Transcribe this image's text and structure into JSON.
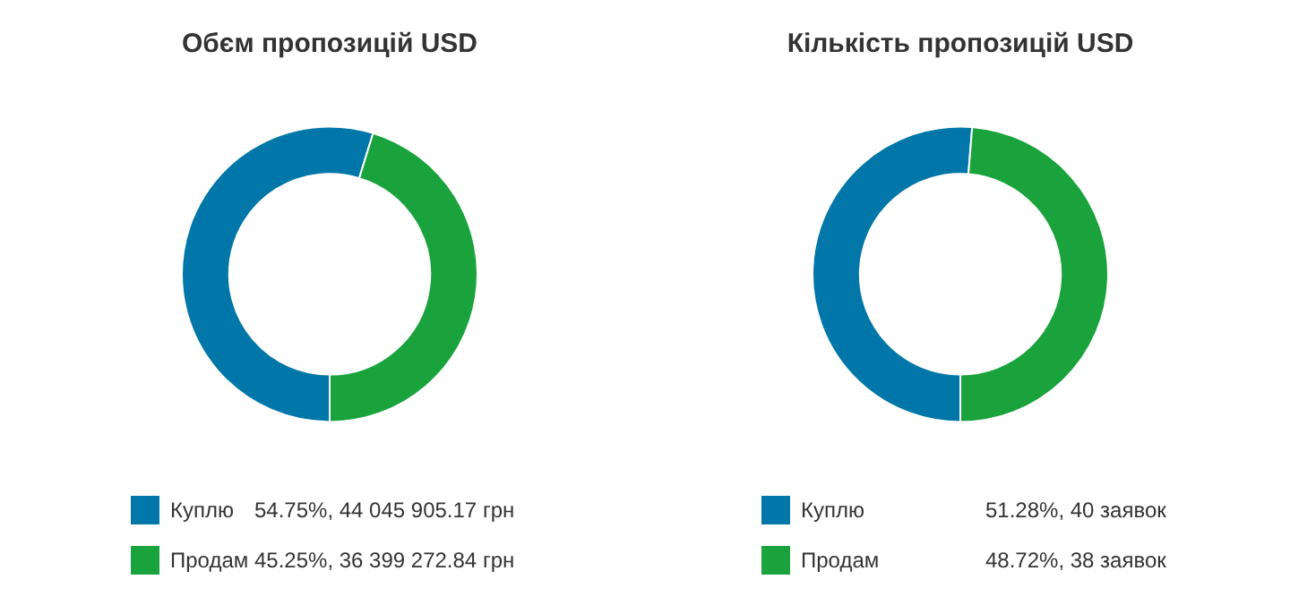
{
  "chart_data": [
    {
      "type": "donut",
      "title": "Обєм пропозицій USD",
      "categories": [
        "Куплю",
        "Продам"
      ],
      "values": [
        54.75,
        45.25
      ],
      "colors": [
        "#0077a8",
        "#1aa33c"
      ],
      "value_labels": [
        "54.75%, 44 045 905.17 грн",
        "45.25%, 36 399 272.84 грн"
      ],
      "legend": "bottom left"
    },
    {
      "type": "donut",
      "title": "Кількість пропозицій USD",
      "categories": [
        "Куплю",
        "Продам"
      ],
      "values": [
        51.28,
        48.72
      ],
      "colors": [
        "#0077a8",
        "#1aa33c"
      ],
      "value_labels": [
        "51.28%, 40 заявок",
        "48.72%, 38 заявок"
      ],
      "legend": "bottom left"
    }
  ]
}
